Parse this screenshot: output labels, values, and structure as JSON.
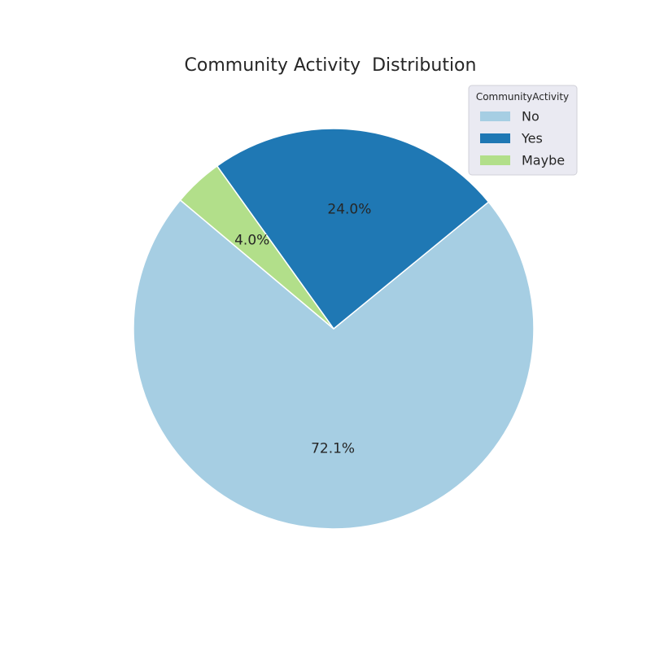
{
  "chart_data": {
    "type": "pie",
    "title": "Community Activity  Distribution",
    "slices": [
      {
        "label": "No",
        "value": 72.1,
        "display": "72.1%",
        "color": "#a6cee3"
      },
      {
        "label": "Yes",
        "value": 24.0,
        "display": "24.0%",
        "color": "#1f78b4"
      },
      {
        "label": "Maybe",
        "value": 4.0,
        "display": "4.0%",
        "color": "#b2df8a"
      }
    ],
    "start_angle_deg": 140,
    "direction": "counterclockwise",
    "legend": {
      "title": "CommunityActivity",
      "placement": "top-right"
    }
  }
}
